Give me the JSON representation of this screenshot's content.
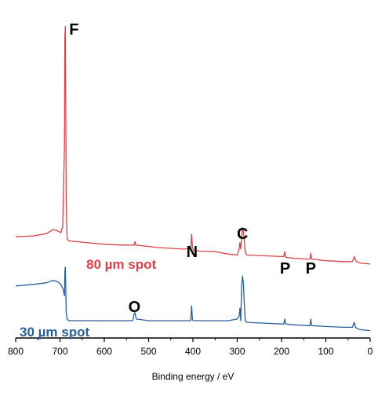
{
  "chart_data": {
    "type": "line",
    "xlabel": "Binding energy / eV",
    "ylabel": "",
    "xlim": [
      800,
      0
    ],
    "x_reversed": true,
    "x_ticks": [
      800,
      700,
      600,
      500,
      400,
      300,
      200,
      100,
      0
    ],
    "y_ticks_shown": false,
    "grid": false,
    "legend": "none",
    "peak_labels": [
      {
        "text": "F",
        "x": 688
      },
      {
        "text": "N",
        "x": 402
      },
      {
        "text": "C",
        "x": 288
      },
      {
        "text": "P",
        "x": 192
      },
      {
        "text": "P",
        "x": 134
      },
      {
        "text": "O",
        "x": 532
      }
    ],
    "series": [
      {
        "name": "80 µm spot",
        "color": "#d9424a",
        "points": [
          [
            800,
            0.35
          ],
          [
            760,
            0.36
          ],
          [
            730,
            0.39
          ],
          [
            715,
            0.44
          ],
          [
            705,
            0.42
          ],
          [
            698,
            0.4
          ],
          [
            694,
            0.47
          ],
          [
            690,
            1.45
          ],
          [
            689,
            2.75
          ],
          [
            688,
            2.9
          ],
          [
            687,
            2.1
          ],
          [
            686,
            0.8
          ],
          [
            684,
            0.33
          ],
          [
            680,
            0.3
          ],
          [
            640,
            0.28
          ],
          [
            600,
            0.26
          ],
          [
            560,
            0.25
          ],
          [
            533,
            0.25
          ],
          [
            531,
            0.29
          ],
          [
            529,
            0.25
          ],
          [
            480,
            0.22
          ],
          [
            420,
            0.2
          ],
          [
            405,
            0.21
          ],
          [
            403,
            0.38
          ],
          [
            401,
            0.22
          ],
          [
            398,
            0.18
          ],
          [
            350,
            0.17
          ],
          [
            320,
            0.14
          ],
          [
            300,
            0.13
          ],
          [
            296,
            0.2
          ],
          [
            294,
            0.28
          ],
          [
            292,
            0.2
          ],
          [
            290,
            0.36
          ],
          [
            288,
            0.46
          ],
          [
            286,
            0.42
          ],
          [
            284,
            0.3
          ],
          [
            282,
            0.16
          ],
          [
            278,
            0.13
          ],
          [
            240,
            0.12
          ],
          [
            200,
            0.11
          ],
          [
            195,
            0.11
          ],
          [
            193,
            0.17
          ],
          [
            191,
            0.1
          ],
          [
            170,
            0.09
          ],
          [
            140,
            0.08
          ],
          [
            136,
            0.08
          ],
          [
            134,
            0.15
          ],
          [
            132,
            0.08
          ],
          [
            100,
            0.06
          ],
          [
            60,
            0.05
          ],
          [
            40,
            0.05
          ],
          [
            36,
            0.11
          ],
          [
            33,
            0.06
          ],
          [
            28,
            0.04
          ],
          [
            20,
            0.03
          ],
          [
            0,
            0.02
          ]
        ]
      },
      {
        "name": "30 µm spot",
        "color": "#2a5f9c",
        "points": [
          [
            800,
            0.42
          ],
          [
            760,
            0.44
          ],
          [
            730,
            0.46
          ],
          [
            715,
            0.49
          ],
          [
            705,
            0.47
          ],
          [
            698,
            0.44
          ],
          [
            693,
            0.38
          ],
          [
            690,
            0.3
          ],
          [
            689,
            0.6
          ],
          [
            688,
            0.65
          ],
          [
            687,
            0.45
          ],
          [
            686,
            0.1
          ],
          [
            684,
            0.02
          ],
          [
            680,
            0.0
          ],
          [
            640,
            0.0
          ],
          [
            560,
            0.0
          ],
          [
            536,
            0.0
          ],
          [
            533,
            0.08
          ],
          [
            531,
            0.1
          ],
          [
            528,
            0.02
          ],
          [
            500,
            0.0
          ],
          [
            420,
            0.0
          ],
          [
            405,
            0.0
          ],
          [
            403,
            0.18
          ],
          [
            401,
            0.01
          ],
          [
            398,
            0.0
          ],
          [
            350,
            0.0
          ],
          [
            320,
            0.0
          ],
          [
            300,
            0.02
          ],
          [
            296,
            0.05
          ],
          [
            294,
            0.15
          ],
          [
            292,
            0.0
          ],
          [
            290,
            0.42
          ],
          [
            288,
            0.54
          ],
          [
            286,
            0.45
          ],
          [
            284,
            0.2
          ],
          [
            282,
            0.0
          ],
          [
            278,
            -0.02
          ],
          [
            240,
            -0.03
          ],
          [
            200,
            -0.04
          ],
          [
            195,
            -0.04
          ],
          [
            193,
            0.02
          ],
          [
            191,
            -0.04
          ],
          [
            170,
            -0.05
          ],
          [
            140,
            -0.06
          ],
          [
            136,
            -0.06
          ],
          [
            134,
            0.02
          ],
          [
            132,
            -0.06
          ],
          [
            100,
            -0.07
          ],
          [
            60,
            -0.08
          ],
          [
            40,
            -0.08
          ],
          [
            36,
            -0.02
          ],
          [
            33,
            -0.08
          ],
          [
            28,
            -0.1
          ],
          [
            20,
            -0.11
          ],
          [
            0,
            -0.12
          ]
        ]
      }
    ],
    "series_labels": [
      {
        "text": "80 µm spot",
        "series": 0
      },
      {
        "text": "30 µm spot",
        "series": 1
      }
    ]
  }
}
